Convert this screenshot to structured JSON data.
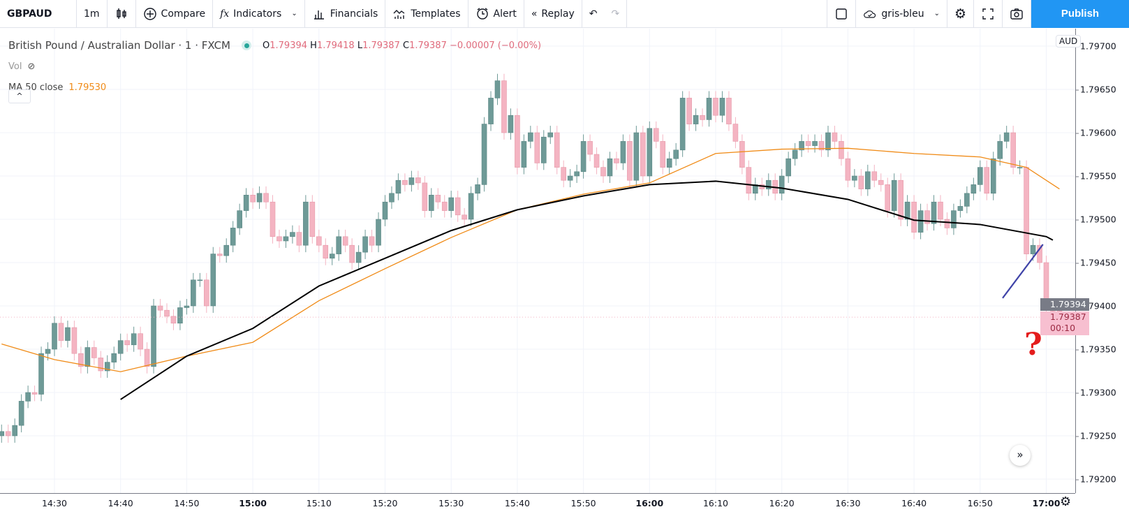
{
  "toolbar": {
    "symbol": "GBPAUD",
    "interval": "1m",
    "compare": "Compare",
    "indicators": "Indicators",
    "financials": "Financials",
    "templates": "Templates",
    "alert": "Alert",
    "replay": "Replay",
    "layout_name": "gris-bleu",
    "publish": "Publish"
  },
  "legend": {
    "title": "British Pound / Australian Dollar · 1 · FXCM",
    "status_color": "#26a69a",
    "o_label": "O",
    "o": "1.79394",
    "h_label": "H",
    "h": "1.79418",
    "l_label": "L",
    "l": "1.79387",
    "c_label": "C",
    "c": "1.79387",
    "change": "−0.00007 (−0.00%)",
    "vol": "Vol",
    "ma_label": "MA 50 close",
    "ma_value": "1.79530"
  },
  "price_axis": {
    "currency": "AUD",
    "ticks": [
      "1.79700",
      "1.79650",
      "1.79600",
      "1.79550",
      "1.79500",
      "1.79450",
      "1.79400",
      "1.79350",
      "1.79300",
      "1.79250",
      "1.79200"
    ],
    "last_price": "1.79394",
    "current_price": "1.79387",
    "countdown": "00:10"
  },
  "time_axis": {
    "ticks": [
      "14:30",
      "14:40",
      "14:50",
      "15:00",
      "15:10",
      "15:20",
      "15:30",
      "15:40",
      "15:50",
      "16:00",
      "16:10",
      "16:20",
      "16:30",
      "16:40",
      "16:50",
      "17:00"
    ],
    "bold": [
      "15:00",
      "16:00",
      "17:00"
    ]
  },
  "annotation": {
    "text": "?",
    "color": "#e41c1c"
  },
  "colors": {
    "up": "#6e9a97",
    "down": "#f4b4c2",
    "ma50": "#f08b17",
    "black_line": "#000000",
    "trend_line": "#3f43a8",
    "accent": "#2196f3"
  },
  "chart_data": {
    "type": "candlestick",
    "start_time": "14:22",
    "interval_minutes": 1,
    "ylim": [
      1.7918,
      1.7972
    ],
    "closes": [
      1.79255,
      1.7925,
      1.79262,
      1.7929,
      1.793,
      1.79298,
      1.79345,
      1.7935,
      1.7938,
      1.7936,
      1.79375,
      1.79345,
      1.7933,
      1.79352,
      1.7934,
      1.79325,
      1.79335,
      1.79345,
      1.7936,
      1.79355,
      1.79368,
      1.7935,
      1.7933,
      1.794,
      1.79395,
      1.79388,
      1.7938,
      1.79398,
      1.794,
      1.7943,
      1.7943,
      1.794,
      1.7946,
      1.79458,
      1.7947,
      1.7949,
      1.7951,
      1.79528,
      1.7952,
      1.7953,
      1.7952,
      1.7948,
      1.79475,
      1.7948,
      1.79485,
      1.7947,
      1.7952,
      1.7948,
      1.7947,
      1.79455,
      1.7946,
      1.7948,
      1.7947,
      1.7945,
      1.79462,
      1.7948,
      1.7947,
      1.795,
      1.7952,
      1.7953,
      1.79545,
      1.7954,
      1.79548,
      1.79542,
      1.7951,
      1.79528,
      1.7952,
      1.7951,
      1.79525,
      1.79505,
      1.795,
      1.7953,
      1.7954,
      1.7961,
      1.7964,
      1.7966,
      1.796,
      1.7962,
      1.7956,
      1.7959,
      1.796,
      1.79565,
      1.79595,
      1.796,
      1.7956,
      1.79545,
      1.7955,
      1.79555,
      1.7959,
      1.79575,
      1.7956,
      1.7955,
      1.7957,
      1.79565,
      1.7959,
      1.79545,
      1.796,
      1.7955,
      1.79605,
      1.7959,
      1.7956,
      1.7957,
      1.7958,
      1.7964,
      1.7961,
      1.7962,
      1.79615,
      1.7964,
      1.7962,
      1.7964,
      1.7961,
      1.7959,
      1.7956,
      1.7953,
      1.7954,
      1.79535,
      1.79545,
      1.7953,
      1.7955,
      1.7957,
      1.7958,
      1.7959,
      1.79585,
      1.7959,
      1.7958,
      1.796,
      1.7959,
      1.7957,
      1.79545,
      1.7955,
      1.79535,
      1.79555,
      1.79545,
      1.7954,
      1.7951,
      1.79545,
      1.795,
      1.7952,
      1.79485,
      1.7951,
      1.79495,
      1.7952,
      1.795,
      1.7949,
      1.7951,
      1.79515,
      1.7953,
      1.7954,
      1.7956,
      1.7953,
      1.7957,
      1.7959,
      1.796,
      1.7956,
      1.7956,
      1.7946,
      1.7947,
      1.7945,
      1.794,
      1.79394,
      1.79387
    ],
    "ma50": [
      [
        "14:22",
        1.79356
      ],
      [
        "14:30",
        1.79338
      ],
      [
        "14:40",
        1.79324
      ],
      [
        "14:50",
        1.79342
      ],
      [
        "15:00",
        1.79358
      ],
      [
        "15:10",
        1.79406
      ],
      [
        "15:20",
        1.79443
      ],
      [
        "15:30",
        1.79479
      ],
      [
        "15:40",
        1.79511
      ],
      [
        "15:50",
        1.79529
      ],
      [
        "16:00",
        1.79542
      ],
      [
        "16:10",
        1.79576
      ],
      [
        "16:20",
        1.79581
      ],
      [
        "16:30",
        1.79582
      ],
      [
        "16:40",
        1.79576
      ],
      [
        "16:50",
        1.79572
      ],
      [
        "16:57",
        1.7956
      ],
      [
        "17:02",
        1.79535
      ]
    ],
    "black_line": [
      [
        "14:40",
        1.79292
      ],
      [
        "14:50",
        1.79342
      ],
      [
        "15:00",
        1.79374
      ],
      [
        "15:10",
        1.79423
      ],
      [
        "15:20",
        1.79455
      ],
      [
        "15:30",
        1.79487
      ],
      [
        "15:40",
        1.79511
      ],
      [
        "15:50",
        1.79527
      ],
      [
        "16:00",
        1.7954
      ],
      [
        "16:10",
        1.79544
      ],
      [
        "16:20",
        1.79536
      ],
      [
        "16:30",
        1.79523
      ],
      [
        "16:40",
        1.79499
      ],
      [
        "16:50",
        1.79494
      ],
      [
        "17:00",
        1.7948
      ],
      [
        "17:01",
        1.79476
      ]
    ],
    "trend_line": [
      [
        "16:53.4",
        1.79409
      ],
      [
        "16:59.5",
        1.79471
      ]
    ]
  }
}
